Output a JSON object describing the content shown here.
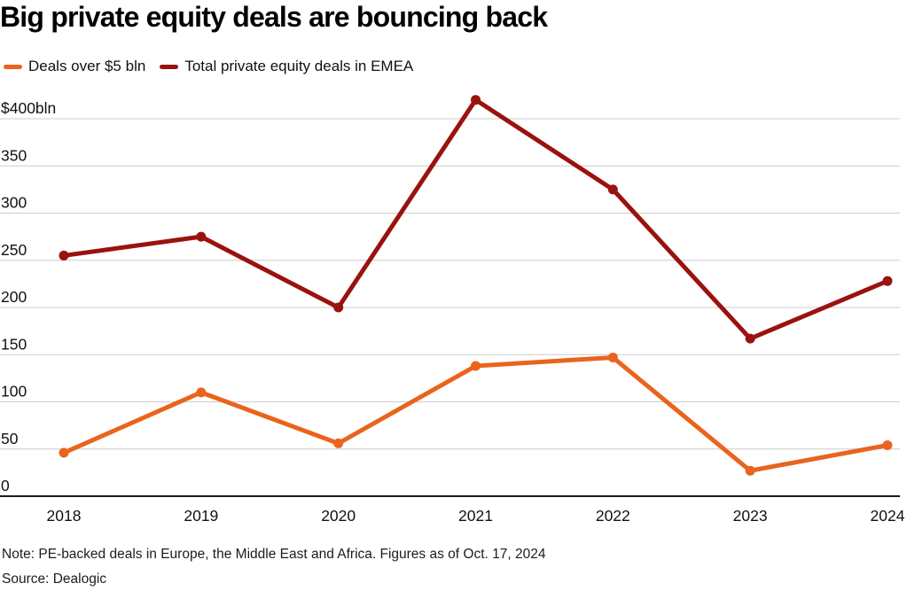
{
  "chart_data": {
    "type": "line",
    "title": "Big private equity deals are bouncing back",
    "categories": [
      "2018",
      "2019",
      "2020",
      "2021",
      "2022",
      "2023",
      "2024"
    ],
    "series": [
      {
        "name": "Deals over $5 bln",
        "color": "#E9641C",
        "values": [
          46,
          110,
          56,
          138,
          147,
          27,
          54
        ]
      },
      {
        "name": "Total private equity deals in EMEA",
        "color": "#9A120E",
        "values": [
          255,
          275,
          200,
          420,
          325,
          167,
          228
        ]
      }
    ],
    "unit": "$bln",
    "ylim": [
      0,
      400
    ],
    "y_ticks": {
      "values": [
        400,
        350,
        300,
        250,
        200,
        150,
        100,
        50,
        0
      ],
      "labels": [
        "$400bln",
        "350",
        "300",
        "250",
        "200",
        "150",
        "100",
        "50",
        "0"
      ]
    },
    "x_tick_labels": [
      "2018",
      "2019",
      "2020",
      "2021",
      "2022",
      "2023",
      "2024"
    ],
    "legend_position": "top-left",
    "grid": "horizontal",
    "note": "Note: PE-backed deals in Europe, the Middle East and Africa. Figures as of Oct. 17, 2024",
    "source": "Source: Dealogic"
  }
}
